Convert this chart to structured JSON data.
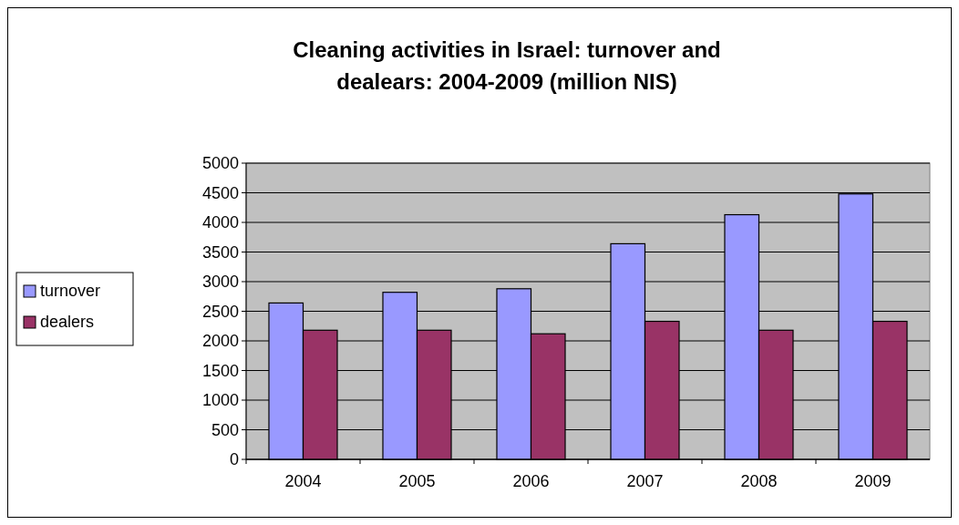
{
  "chart_data": {
    "type": "bar",
    "title": "Cleaning activities in Israel: turnover and dealears: 2004-2009 (million NIS)",
    "categories": [
      "2004",
      "2005",
      "2006",
      "2007",
      "2008",
      "2009"
    ],
    "series": [
      {
        "name": "turnover",
        "color": "#9999ff",
        "values": [
          2640,
          2820,
          2880,
          3640,
          4130,
          4480
        ]
      },
      {
        "name": "dealers",
        "color": "#993366",
        "values": [
          2180,
          2180,
          2120,
          2330,
          2180,
          2330
        ]
      }
    ],
    "ylim": [
      0,
      5000
    ],
    "yticks": [
      0,
      500,
      1000,
      1500,
      2000,
      2500,
      3000,
      3500,
      4000,
      4500,
      5000
    ],
    "grid": "y",
    "legend": "left"
  }
}
